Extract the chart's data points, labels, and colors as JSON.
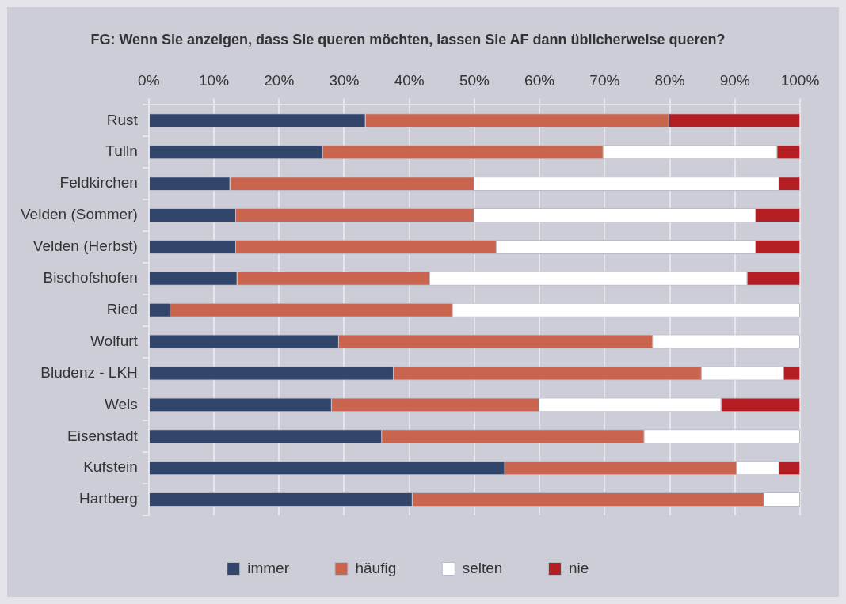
{
  "chart_data": {
    "type": "bar",
    "orientation": "horizontal",
    "stacked": true,
    "title": "FG: Wenn Sie anzeigen, dass Sie queren möchten, lassen Sie AF dann üblicherweise queren?",
    "categories": [
      "Rust",
      "Tulln",
      "Feldkirchen",
      "Velden (Sommer)",
      "Velden (Herbst)",
      "Bischofshofen",
      "Ried",
      "Wolfurt",
      "Bludenz - LKH",
      "Wels",
      "Eisenstadt",
      "Kufstein",
      "Hartberg"
    ],
    "series": [
      {
        "name": "immer",
        "color": "#31466a",
        "values": [
          33.3,
          26.7,
          12.5,
          13.4,
          13.4,
          13.6,
          3.3,
          29.2,
          37.6,
          28.1,
          35.8,
          54.7,
          40.5
        ]
      },
      {
        "name": "häufig",
        "color": "#c9644f",
        "values": [
          46.6,
          43.1,
          37.5,
          36.6,
          40.0,
          29.6,
          43.4,
          48.2,
          47.3,
          31.9,
          40.3,
          35.6,
          54.0
        ]
      },
      {
        "name": "selten",
        "color": "#ffffff",
        "values": [
          0,
          26.7,
          46.8,
          43.2,
          39.8,
          48.7,
          53.3,
          22.6,
          12.6,
          27.9,
          23.9,
          6.5,
          5.5
        ]
      },
      {
        "name": "nie",
        "color": "#b31e22",
        "values": [
          20.1,
          3.5,
          3.2,
          6.8,
          6.8,
          8.1,
          0,
          0,
          2.5,
          12.1,
          0,
          3.2,
          0
        ]
      }
    ],
    "xlim": [
      0,
      100
    ],
    "xticks": [
      {
        "value": 0,
        "label": "0%"
      },
      {
        "value": 10,
        "label": "10%"
      },
      {
        "value": 20,
        "label": "20%"
      },
      {
        "value": 30,
        "label": "30%"
      },
      {
        "value": 40,
        "label": "40%"
      },
      {
        "value": 50,
        "label": "50%"
      },
      {
        "value": 60,
        "label": "60%"
      },
      {
        "value": 70,
        "label": "70%"
      },
      {
        "value": 80,
        "label": "80%"
      },
      {
        "value": 90,
        "label": "90%"
      },
      {
        "value": 100,
        "label": "100%"
      }
    ],
    "grid": "x",
    "legend": "bottom"
  }
}
